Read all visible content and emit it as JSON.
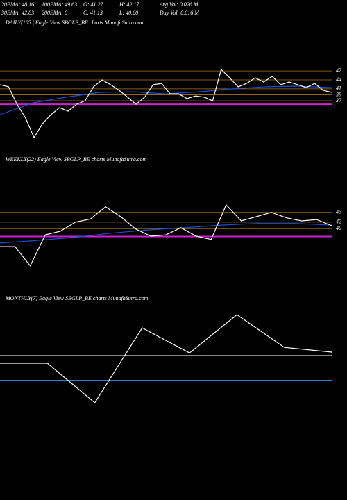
{
  "header": {
    "row1": [
      "20EMA: 48.16",
      "100EMA: 49.63",
      "O: 41.27",
      "H: 42.17",
      "Avg Vol: 0.026  M"
    ],
    "row2": [
      "30EMA: 42.83",
      "200EMA: 0",
      "C: 41.13",
      "L: 40.60",
      "Day Vol: 0.016  M"
    ]
  },
  "chart_data": [
    {
      "type": "line",
      "label": "DAILY(105 | Eagle View SBGLP_BE charts MunafaSutra.com",
      "ylim": [
        23,
        51
      ],
      "yticks": [
        47,
        44,
        41,
        39,
        37
      ],
      "tick_line_color": "#a87a18",
      "series": [
        {
          "color": "#1a4fd6",
          "values": [
            32.3,
            36.3,
            38.2,
            39.8,
            40.0,
            39.3,
            40.0,
            41.0,
            41.7,
            41.9,
            41.4
          ]
        },
        {
          "color": "#ffffff",
          "values": [
            42.4,
            41.7,
            35.8,
            31.2,
            24.6,
            29.3,
            32.3,
            34.7,
            33.5,
            35.8,
            37.0,
            41.7,
            44.0,
            42.4,
            40.5,
            38.2,
            35.8,
            38.2,
            42.4,
            42.8,
            39.3,
            39.3,
            37.7,
            38.6,
            38.2,
            37.0,
            47.5,
            44.7,
            41.7,
            42.8,
            44.7,
            43.3,
            45.2,
            42.4,
            43.3,
            42.4,
            41.4,
            42.8,
            40.5,
            39.8
          ]
        }
      ],
      "hlines": [
        {
          "value": 35.8,
          "color": "#d020d0"
        }
      ]
    },
    {
      "type": "line",
      "label": "WEEKLY(22) Eagle View SBGLP_BE charts MunafaSutra.com",
      "ylim": [
        26,
        59
      ],
      "yticks": [
        45,
        42,
        40
      ],
      "tick_line_color": "#a87a18",
      "series": [
        {
          "color": "#1a4fd6",
          "values": [
            35.6,
            36.4,
            37.3,
            38.6,
            39.6,
            40.3,
            41.1,
            41.6,
            41.6,
            41.1
          ]
        },
        {
          "color": "#ffffff",
          "values": [
            34.5,
            34.5,
            28.6,
            38.1,
            39.2,
            42.0,
            43.0,
            46.7,
            43.7,
            39.9,
            37.7,
            38.1,
            40.3,
            37.7,
            36.7,
            47.3,
            42.4,
            43.7,
            45.0,
            43.3,
            42.4,
            42.8,
            40.9
          ]
        }
      ],
      "hlines": [
        {
          "value": 37.6,
          "color": "#d020d0"
        }
      ]
    },
    {
      "type": "line",
      "label": "MONTHLY(7) Eagle View SBGLP_BE charts MunafaSutra.com",
      "ylim": [
        20,
        70
      ],
      "yticks": [],
      "tick_line_color": "#a87a18",
      "series": [
        {
          "color": "#ffffff",
          "values": [
            42.9,
            42.9,
            27.9,
            56.3,
            46.8,
            61.3,
            48.9,
            47.1
          ]
        }
      ],
      "hlines": [
        {
          "value": 45.8,
          "color": "#888888"
        },
        {
          "value": 36.3,
          "color": "#3a7bd5"
        }
      ]
    }
  ]
}
